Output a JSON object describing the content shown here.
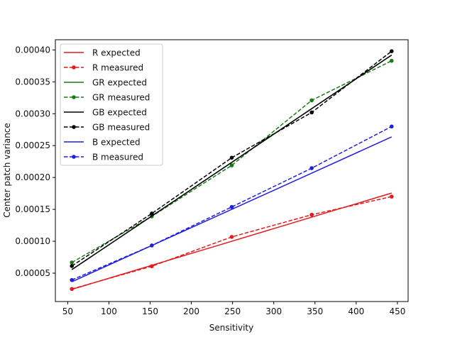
{
  "chart_data": {
    "type": "line",
    "title": "",
    "xlabel": "Sensitivity",
    "ylabel": "Center patch variance",
    "xlim": [
      35,
      463
    ],
    "ylim": [
      5.5e-06,
      0.000416
    ],
    "xticks": [
      50,
      100,
      150,
      200,
      250,
      300,
      350,
      400,
      450
    ],
    "xtick_labels": [
      "50",
      "100",
      "150",
      "200",
      "250",
      "300",
      "350",
      "400",
      "450"
    ],
    "yticks": [
      5e-05,
      0.0001,
      0.00015,
      0.0002,
      0.00025,
      0.0003,
      0.00035,
      0.0004
    ],
    "ytick_labels": [
      "0.00005",
      "0.00010",
      "0.00015",
      "0.00020",
      "0.00025",
      "0.00030",
      "0.00035",
      "0.00040"
    ],
    "grid": false,
    "legend_position": "top-left",
    "x": [
      55,
      152,
      249,
      346,
      443
    ],
    "series": [
      {
        "name": "R expected",
        "color": "#e41a1c",
        "style": "solid",
        "markers": false,
        "values": [
          2.45e-05,
          6.23e-05,
          0.0001,
          0.0001378,
          0.0001756
        ]
      },
      {
        "name": "R measured",
        "color": "#e41a1c",
        "style": "dashed",
        "markers": true,
        "values": [
          2.52e-05,
          6.08e-05,
          0.0001068,
          0.0001416,
          0.00017
        ]
      },
      {
        "name": "GR expected",
        "color": "#1a7a1a",
        "style": "solid",
        "markers": false,
        "values": [
          5.55e-05,
          0.0001396,
          0.0002237,
          0.0003079,
          0.000392
        ]
      },
      {
        "name": "GR measured",
        "color": "#1a7a1a",
        "style": "dashed",
        "markers": true,
        "values": [
          6.67e-05,
          0.000139,
          0.000219,
          0.000321,
          0.000383
        ]
      },
      {
        "name": "GB expected",
        "color": "#000000",
        "style": "solid",
        "markers": false,
        "values": [
          5.55e-05,
          0.0001396,
          0.0002237,
          0.0003079,
          0.000392
        ]
      },
      {
        "name": "GB measured",
        "color": "#000000",
        "style": "dashed",
        "markers": true,
        "values": [
          6.12e-05,
          0.0001435,
          0.000231,
          0.000302,
          0.000398
        ]
      },
      {
        "name": "B expected",
        "color": "#1f1fdd",
        "style": "solid",
        "markers": false,
        "values": [
          3.65e-05,
          9.33e-05,
          0.00015,
          0.0002068,
          0.0002636
        ]
      },
      {
        "name": "B measured",
        "color": "#1f1fdd",
        "style": "dashed",
        "markers": true,
        "values": [
          3.93e-05,
          9.34e-05,
          0.0001538,
          0.0002146,
          0.00028
        ]
      }
    ]
  }
}
